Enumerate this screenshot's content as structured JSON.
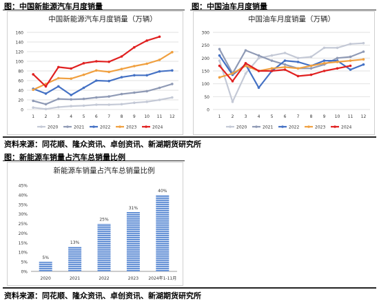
{
  "captions": {
    "fig1": "图：中国新能源汽车月度销量",
    "fig2": "图：中国油车月度销量",
    "source1": "资料来源：同花顺、隆众资讯、卓创资讯、新湖期货研究所",
    "fig3": "图：新能源车销量占汽车总销量比例",
    "source2": "资料来源：同花顺、隆众资讯、卓创资讯、新湖期货研究所"
  },
  "chart_data": [
    {
      "type": "line",
      "title": "中国新能源汽车月度销量（万辆）",
      "xlabel": "",
      "ylabel": "",
      "x": [
        "1",
        "2",
        "3",
        "4",
        "5",
        "6",
        "7",
        "8",
        "9",
        "10",
        "11",
        "12"
      ],
      "ylim": [
        0,
        160
      ],
      "yticks": [
        0,
        20,
        40,
        60,
        80,
        100,
        120,
        140,
        160
      ],
      "grid": true,
      "legend_position": "bottom",
      "series": [
        {
          "name": "2020",
          "color": "#c4c9d6",
          "values": [
            4,
            1,
            5,
            7,
            8,
            10,
            10,
            11,
            14,
            16,
            20,
            25
          ]
        },
        {
          "name": "2021",
          "color": "#8f9ab5",
          "values": [
            18,
            11,
            22,
            21,
            22,
            25,
            27,
            32,
            35,
            38,
            45,
            53
          ]
        },
        {
          "name": "2022",
          "color": "#4471c4",
          "values": [
            43,
            33,
            48,
            30,
            45,
            60,
            59,
            67,
            71,
            71,
            79,
            81
          ]
        },
        {
          "name": "2023",
          "color": "#f0a040",
          "values": [
            41,
            53,
            65,
            64,
            72,
            81,
            78,
            84,
            90,
            95,
            103,
            119
          ]
        },
        {
          "name": "2024",
          "color": "#e02020",
          "values": [
            73,
            48,
            88,
            85,
            96,
            100,
            99,
            110,
            129,
            143,
            151,
            null
          ]
        }
      ]
    },
    {
      "type": "line",
      "title": "中国油车月度销量（万辆）",
      "xlabel": "",
      "ylabel": "",
      "x": [
        "1",
        "2",
        "3",
        "4",
        "5",
        "6",
        "7",
        "8",
        "9",
        "10",
        "11",
        "12"
      ],
      "ylim": [
        0,
        300
      ],
      "yticks": [
        0,
        50,
        100,
        150,
        200,
        250,
        300
      ],
      "grid": true,
      "legend_position": "bottom",
      "series": [
        {
          "name": "2020",
          "color": "#c4c9d6",
          "values": [
            190,
            30,
            140,
            200,
            210,
            220,
            200,
            205,
            240,
            240,
            255,
            258
          ]
        },
        {
          "name": "2021",
          "color": "#8f9ab5",
          "values": [
            235,
            140,
            230,
            210,
            190,
            175,
            160,
            160,
            175,
            200,
            205,
            225
          ]
        },
        {
          "name": "2022",
          "color": "#4471c4",
          "values": [
            210,
            135,
            175,
            85,
            150,
            190,
            185,
            170,
            190,
            190,
            155,
            175
          ]
        },
        {
          "name": "2023",
          "color": "#f0a040",
          "values": [
            125,
            140,
            170,
            150,
            160,
            165,
            160,
            170,
            180,
            185,
            190,
            195
          ]
        },
        {
          "name": "2024",
          "color": "#e02020",
          "values": [
            170,
            110,
            180,
            150,
            150,
            155,
            130,
            135,
            150,
            160,
            170,
            null
          ]
        }
      ]
    },
    {
      "type": "bar",
      "title": "新能源车销量占汽车总销量比例",
      "xlabel": "",
      "ylabel": "",
      "categories": [
        "2020",
        "2021",
        "2022",
        "2023",
        "2024年1-11月"
      ],
      "values": [
        5,
        13,
        25,
        31,
        40
      ],
      "value_labels": [
        "5%",
        "13%",
        "25%",
        "31%",
        "40%"
      ],
      "ylim": [
        0,
        45
      ],
      "yticks": [
        0,
        5,
        10,
        15,
        20,
        25,
        30,
        35,
        40,
        45
      ],
      "ytick_labels": [
        "0%",
        "5%",
        "10%",
        "15%",
        "20%",
        "25%",
        "30%",
        "35%",
        "40%",
        "45%"
      ],
      "bar_color": "#5b8bd6",
      "grid": false
    }
  ]
}
